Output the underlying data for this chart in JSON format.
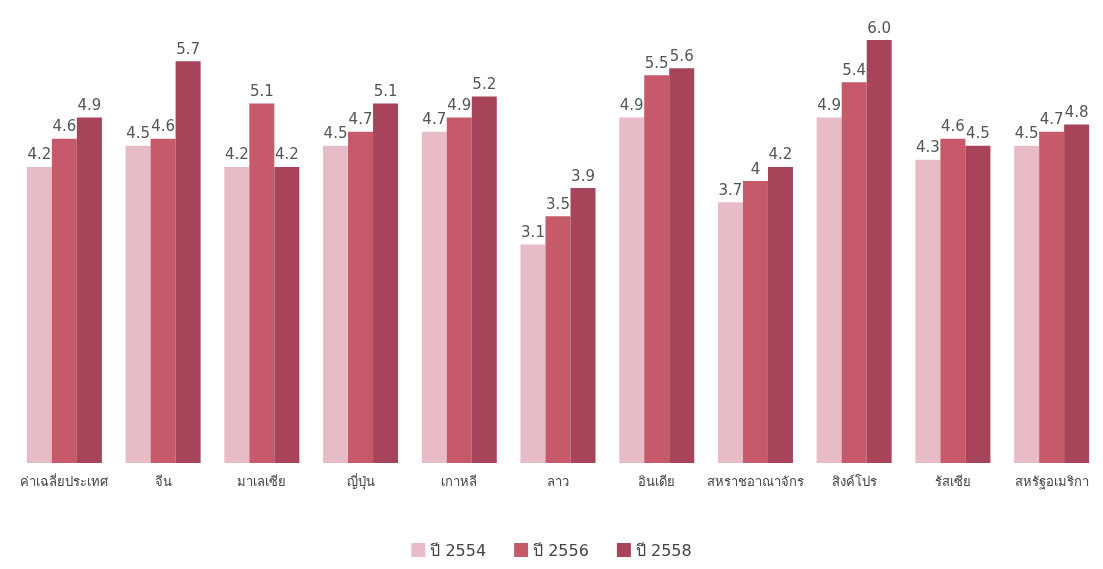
{
  "chart_data": {
    "type": "bar",
    "categories": [
      "ค่าเฉลี่ยประเทศ",
      "จีน",
      "มาเลเซีย",
      "ญี่ปุ่น",
      "เกาหลี",
      "ลาว",
      "อินเดีย",
      "สหราชอาณาจักร",
      "สิงค์โปร",
      "รัสเซีย",
      "สหรัฐอเมริกา"
    ],
    "series": [
      {
        "name": "ปี 2554",
        "color": "#e8bcc6",
        "values": [
          4.2,
          4.5,
          4.2,
          4.5,
          4.7,
          3.1,
          4.9,
          3.7,
          4.9,
          4.3,
          4.5
        ],
        "value_labels": [
          "4.2",
          "4.5",
          "4.2",
          "4.5",
          "4.7",
          "3.1",
          "4.9",
          "3.7",
          "4.9",
          "4.3",
          "4.5"
        ]
      },
      {
        "name": "ปี 2556",
        "color": "#c65a6a",
        "values": [
          4.6,
          4.6,
          5.1,
          4.7,
          4.9,
          3.5,
          5.5,
          4,
          5.4,
          4.6,
          4.7
        ],
        "value_labels": [
          "4.6",
          "4.6",
          "5.1",
          "4.7",
          "4.9",
          "3.5",
          "5.5",
          "4",
          "5.4",
          "4.6",
          "4.7"
        ]
      },
      {
        "name": "ปี 2558",
        "color": "#a8445a",
        "values": [
          4.9,
          5.7,
          4.2,
          5.1,
          5.2,
          3.9,
          5.6,
          4.2,
          6.0,
          4.5,
          4.8
        ],
        "value_labels": [
          "4.9",
          "5.7",
          "4.2",
          "5.1",
          "5.2",
          "3.9",
          "5.6",
          "4.2",
          "6.0",
          "4.5",
          "4.8"
        ]
      }
    ],
    "tick_labels": "x",
    "legend": "bottom"
  }
}
